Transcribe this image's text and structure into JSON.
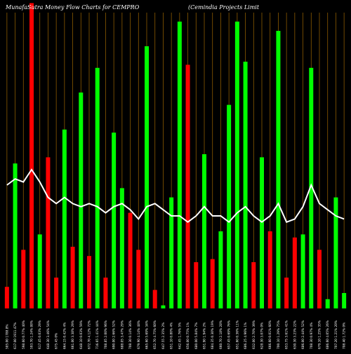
{
  "chart_data": {
    "type": "bar",
    "title_left": "MunafaSutra  Money Flow  Charts for CEMPRO",
    "title_right": "(Cemindia  Projects Limit",
    "colors": {
      "background": "#000000",
      "up": "#00ff00",
      "down": "#ff0000",
      "grid": "#8b5a00",
      "line": "#ffffff"
    },
    "ylim": [
      0,
      100
    ],
    "categories": [
      "585.00 1788.8%",
      "617.00 1911.47%",
      "598.60 0.77% 40%",
      "593.70 1.24% 88%",
      "617.45 0.03% 29%",
      "648.30 3.46% 54%",
      "675.45 0%",
      "664.15 0.42% 4%",
      "661.00 3.38% 29%",
      "648.10 0.03% 59%",
      "672.70 4.12% 72%",
      "716.65 1.41% 44%",
      "708.85 2.00% 96%",
      "690.00 2.66% 52%",
      "688.05 3.47% 29%",
      "708.30 0.14% 36%",
      "679.90 4.14% 48%",
      "665.60 5.69% 34%",
      "652.70 4.75% 60%",
      "647.55 2.35% 2%",
      "651.10 0.80% 4%",
      "642.45 1.76% 5%",
      "656.00 0.75% 1%",
      "680.00 5.84% 7%",
      "651.90 1.94% 2%",
      "684.35 0.30% 19%",
      "660.70 2.18% 28%",
      "657.45 0.69% 76%",
      "651.60 0.36% 11%",
      "686.25 4.96% 1%",
      "632.00 2.70% 39%",
      "628.30 3.07% 0%",
      "666.60 0.01% 60%",
      "700.10 1.29% 75%",
      "653.75 3.61% 41%",
      "630.30 3.23% 22%",
      "686.00 2.44% 52%",
      "708.30 0.97% 4%",
      "679.10 1.25% 35%",
      "686.60 4.05% 26%",
      "707.20 1.21% 20%",
      "708.40 1.72% 0%"
    ],
    "values": [
      7,
      47,
      19,
      99,
      24,
      49,
      10,
      58,
      20,
      70,
      17,
      78,
      10,
      57,
      39,
      31,
      19,
      85,
      6,
      1,
      36,
      93,
      79,
      15,
      50,
      16,
      25,
      66,
      93,
      80,
      15,
      49,
      25,
      90,
      10,
      23,
      24,
      78,
      19,
      3,
      36,
      5
    ],
    "directions": [
      "down",
      "up",
      "down",
      "down",
      "up",
      "down",
      "down",
      "up",
      "down",
      "up",
      "down",
      "up",
      "down",
      "up",
      "up",
      "down",
      "down",
      "up",
      "down",
      "up",
      "up",
      "up",
      "down",
      "down",
      "up",
      "down",
      "up",
      "up",
      "up",
      "up",
      "down",
      "up",
      "down",
      "up",
      "down",
      "down",
      "up",
      "up",
      "down",
      "up",
      "up",
      "up"
    ],
    "line_values": [
      40,
      42,
      41,
      45,
      41,
      36,
      34,
      36,
      34,
      33,
      34,
      33,
      31,
      33,
      34,
      32,
      29,
      33,
      34,
      32,
      30,
      30,
      28,
      30,
      33,
      30,
      30,
      28,
      31,
      33,
      30,
      28,
      30,
      34,
      28,
      29,
      33,
      40,
      34,
      32,
      30,
      29
    ]
  }
}
